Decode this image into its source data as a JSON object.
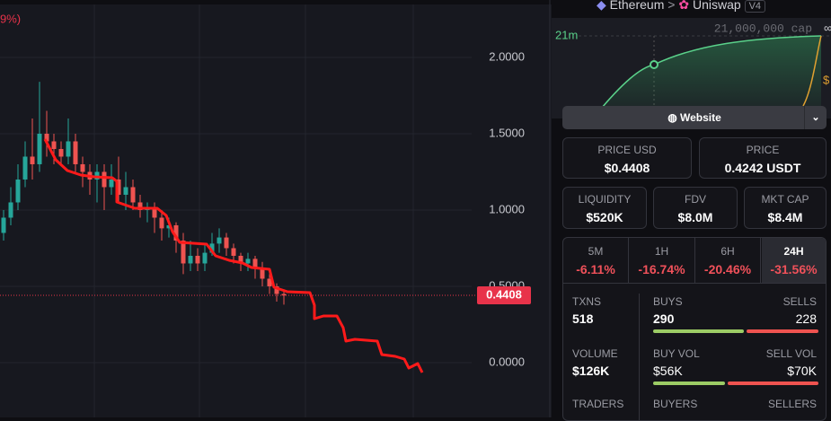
{
  "chart_data": {
    "type": "candlestick",
    "legend_fragment": "9%)",
    "open": [
      0.85,
      0.95,
      1.05,
      1.2,
      1.35,
      1.3,
      1.5,
      1.45,
      1.4,
      1.35,
      1.45,
      1.3,
      1.25,
      1.2,
      1.25,
      1.15,
      1.2,
      1.1,
      1.15,
      1.05,
      1.0,
      1.02,
      0.95,
      0.88,
      0.9,
      0.8,
      0.65,
      0.7,
      0.65,
      0.72,
      0.78,
      0.82,
      0.75,
      0.7,
      0.65,
      0.68,
      0.62,
      0.55,
      0.5,
      0.45
    ],
    "high": [
      1.0,
      1.15,
      1.3,
      1.45,
      1.6,
      1.84,
      1.65,
      1.5,
      1.45,
      1.6,
      1.5,
      1.35,
      1.3,
      1.3,
      1.3,
      1.3,
      1.35,
      1.25,
      1.2,
      1.1,
      1.05,
      1.05,
      1.0,
      0.95,
      0.92,
      0.85,
      0.8,
      0.75,
      0.78,
      0.85,
      0.88,
      0.85,
      0.78,
      0.72,
      0.72,
      0.7,
      0.66,
      0.58,
      0.52,
      0.48
    ],
    "low": [
      0.8,
      0.9,
      1.0,
      1.15,
      1.2,
      1.25,
      1.35,
      1.3,
      1.3,
      1.3,
      1.25,
      1.15,
      1.1,
      1.05,
      1.0,
      1.1,
      1.05,
      1.0,
      1.0,
      0.95,
      0.92,
      0.85,
      0.8,
      0.82,
      0.72,
      0.58,
      0.6,
      0.6,
      0.6,
      0.7,
      0.72,
      0.7,
      0.65,
      0.6,
      0.6,
      0.55,
      0.5,
      0.45,
      0.4,
      0.38
    ],
    "close": [
      0.95,
      1.05,
      1.2,
      1.35,
      1.3,
      1.5,
      1.45,
      1.4,
      1.35,
      1.45,
      1.3,
      1.25,
      1.2,
      1.25,
      1.15,
      1.2,
      1.1,
      1.15,
      1.05,
      1.0,
      1.02,
      0.95,
      0.88,
      0.9,
      0.8,
      0.65,
      0.7,
      0.65,
      0.72,
      0.78,
      0.82,
      0.75,
      0.7,
      0.65,
      0.68,
      0.62,
      0.55,
      0.5,
      0.45,
      0.44
    ],
    "ylim": [
      -0.359,
      2.347
    ],
    "yticks": [
      {
        "value": 0,
        "label": "0.0000"
      },
      {
        "value": 0.5,
        "label": "0.5000"
      },
      {
        "value": 1,
        "label": "1.0000"
      },
      {
        "value": 1.5,
        "label": "1.5000"
      },
      {
        "value": 2,
        "label": "2.0000"
      }
    ],
    "last_price": 0.4408,
    "grid": true,
    "colors": {
      "up": "#26a69a",
      "down": "#ef5350",
      "last": "#e8334a"
    }
  },
  "breadcrumb": {
    "chain": "Ethereum",
    "separator": ">",
    "dex": "Uniswap",
    "version": "V4"
  },
  "supply_chart": {
    "y_label": "21m",
    "cap_label": "21,000,000 cap",
    "infinity": "∞",
    "dollar": "$"
  },
  "website": "Website",
  "price_usd": {
    "label": "PRICE USD",
    "value": "$0.4408"
  },
  "price": {
    "label": "PRICE",
    "value": "0.4242 USDT"
  },
  "liquidity": {
    "label": "LIQUIDITY",
    "value": "$520K"
  },
  "fdv": {
    "label": "FDV",
    "value": "$8.0M"
  },
  "mkt_cap": {
    "label": "MKT CAP",
    "value": "$8.4M"
  },
  "tabs": [
    {
      "label": "5M",
      "change": "-6.11%"
    },
    {
      "label": "1H",
      "change": "-16.74%"
    },
    {
      "label": "6H",
      "change": "-20.46%"
    },
    {
      "label": "24H",
      "change": "-31.56%"
    }
  ],
  "selected_tab": 3,
  "txns": {
    "label": "TXNS",
    "value": "518"
  },
  "buys": {
    "label": "BUYS",
    "value": 290
  },
  "sells": {
    "label": "SELLS",
    "value": 228
  },
  "volume": {
    "label": "VOLUME",
    "value": "$126K"
  },
  "buy_vol": {
    "label": "BUY VOL",
    "value": {
      "value": 56000,
      "label": "$56K"
    }
  },
  "sell_vol": {
    "label": "SELL VOL",
    "value": {
      "value": 70000,
      "label": "$70K"
    }
  },
  "traders": {
    "label": "TRADERS"
  },
  "buyers": {
    "label": "BUYERS"
  },
  "sellers": {
    "label": "SELLERS"
  }
}
